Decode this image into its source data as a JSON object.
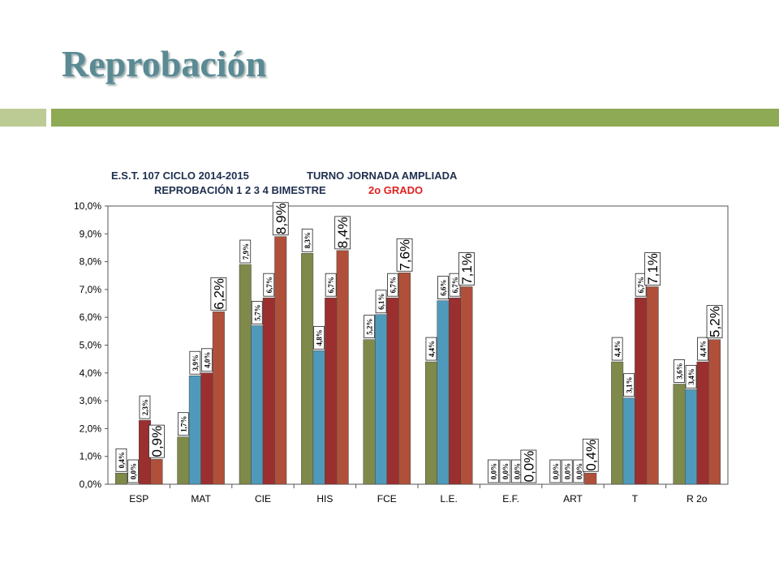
{
  "slide": {
    "title": "Reprobación"
  },
  "chart_data": {
    "type": "bar",
    "title_line1_left": "E.S.T. 107 CICLO 2014-2015",
    "title_line1_right": "TURNO JORNADA AMPLIADA",
    "title_line2_left": "REPROBACIÓN 1 2 3 4  BIMESTRE",
    "title_line2_right": "2o GRADO",
    "categories": [
      "ESP",
      "MAT",
      "CIE",
      "HIS",
      "FCE",
      "L.E.",
      "E.F.",
      "ART",
      "T",
      "R 2o"
    ],
    "ylim": [
      0,
      10
    ],
    "y_ticks": [
      "0,0%",
      "1,0%",
      "2,0%",
      "3,0%",
      "4,0%",
      "5,0%",
      "6,0%",
      "7,0%",
      "8,0%",
      "9,0%",
      "10,0%"
    ],
    "grid": false,
    "legend": "none",
    "series": [
      {
        "color": "#7f8a4a",
        "values": [
          0.4,
          1.7,
          7.9,
          8.3,
          5.2,
          4.4,
          0.0,
          0.0,
          4.4,
          3.6
        ],
        "labels": [
          "0,4%",
          "1,7%",
          "7,9%",
          "8,3%",
          "5,2%",
          "4,4%",
          "0,0%",
          "0,0%",
          "4,4%",
          "3,6%"
        ]
      },
      {
        "color": "#4f9aba",
        "values": [
          0.0,
          3.9,
          5.7,
          4.8,
          6.1,
          6.6,
          0.0,
          0.0,
          3.1,
          3.4
        ],
        "labels": [
          "0,0%",
          "3,9%",
          "5,7%",
          "4,8%",
          "6,1%",
          "6,6%",
          "0,0%",
          "0,0%",
          "3,1%",
          "3,4%"
        ]
      },
      {
        "color": "#9b2f2f",
        "values": [
          2.3,
          4.0,
          6.7,
          6.7,
          6.7,
          6.7,
          0.0,
          0.0,
          6.7,
          4.4
        ],
        "labels": [
          "2,3%",
          "4,0%",
          "6,7%",
          "6,7%",
          "6,7%",
          "6,7%",
          "0,0%",
          "0,0%",
          "6,7%",
          "4,4%"
        ]
      },
      {
        "color": "#b0503a",
        "values": [
          0.9,
          6.2,
          8.9,
          8.4,
          7.6,
          7.1,
          0.0,
          0.4,
          7.1,
          5.2
        ],
        "labels": [
          "0,9%",
          "6,2%",
          "8,9%",
          "8,4%",
          "7,6%",
          "7,1%",
          "0,0%",
          "0,4%",
          "7,1%",
          "5,2%"
        ]
      }
    ]
  }
}
